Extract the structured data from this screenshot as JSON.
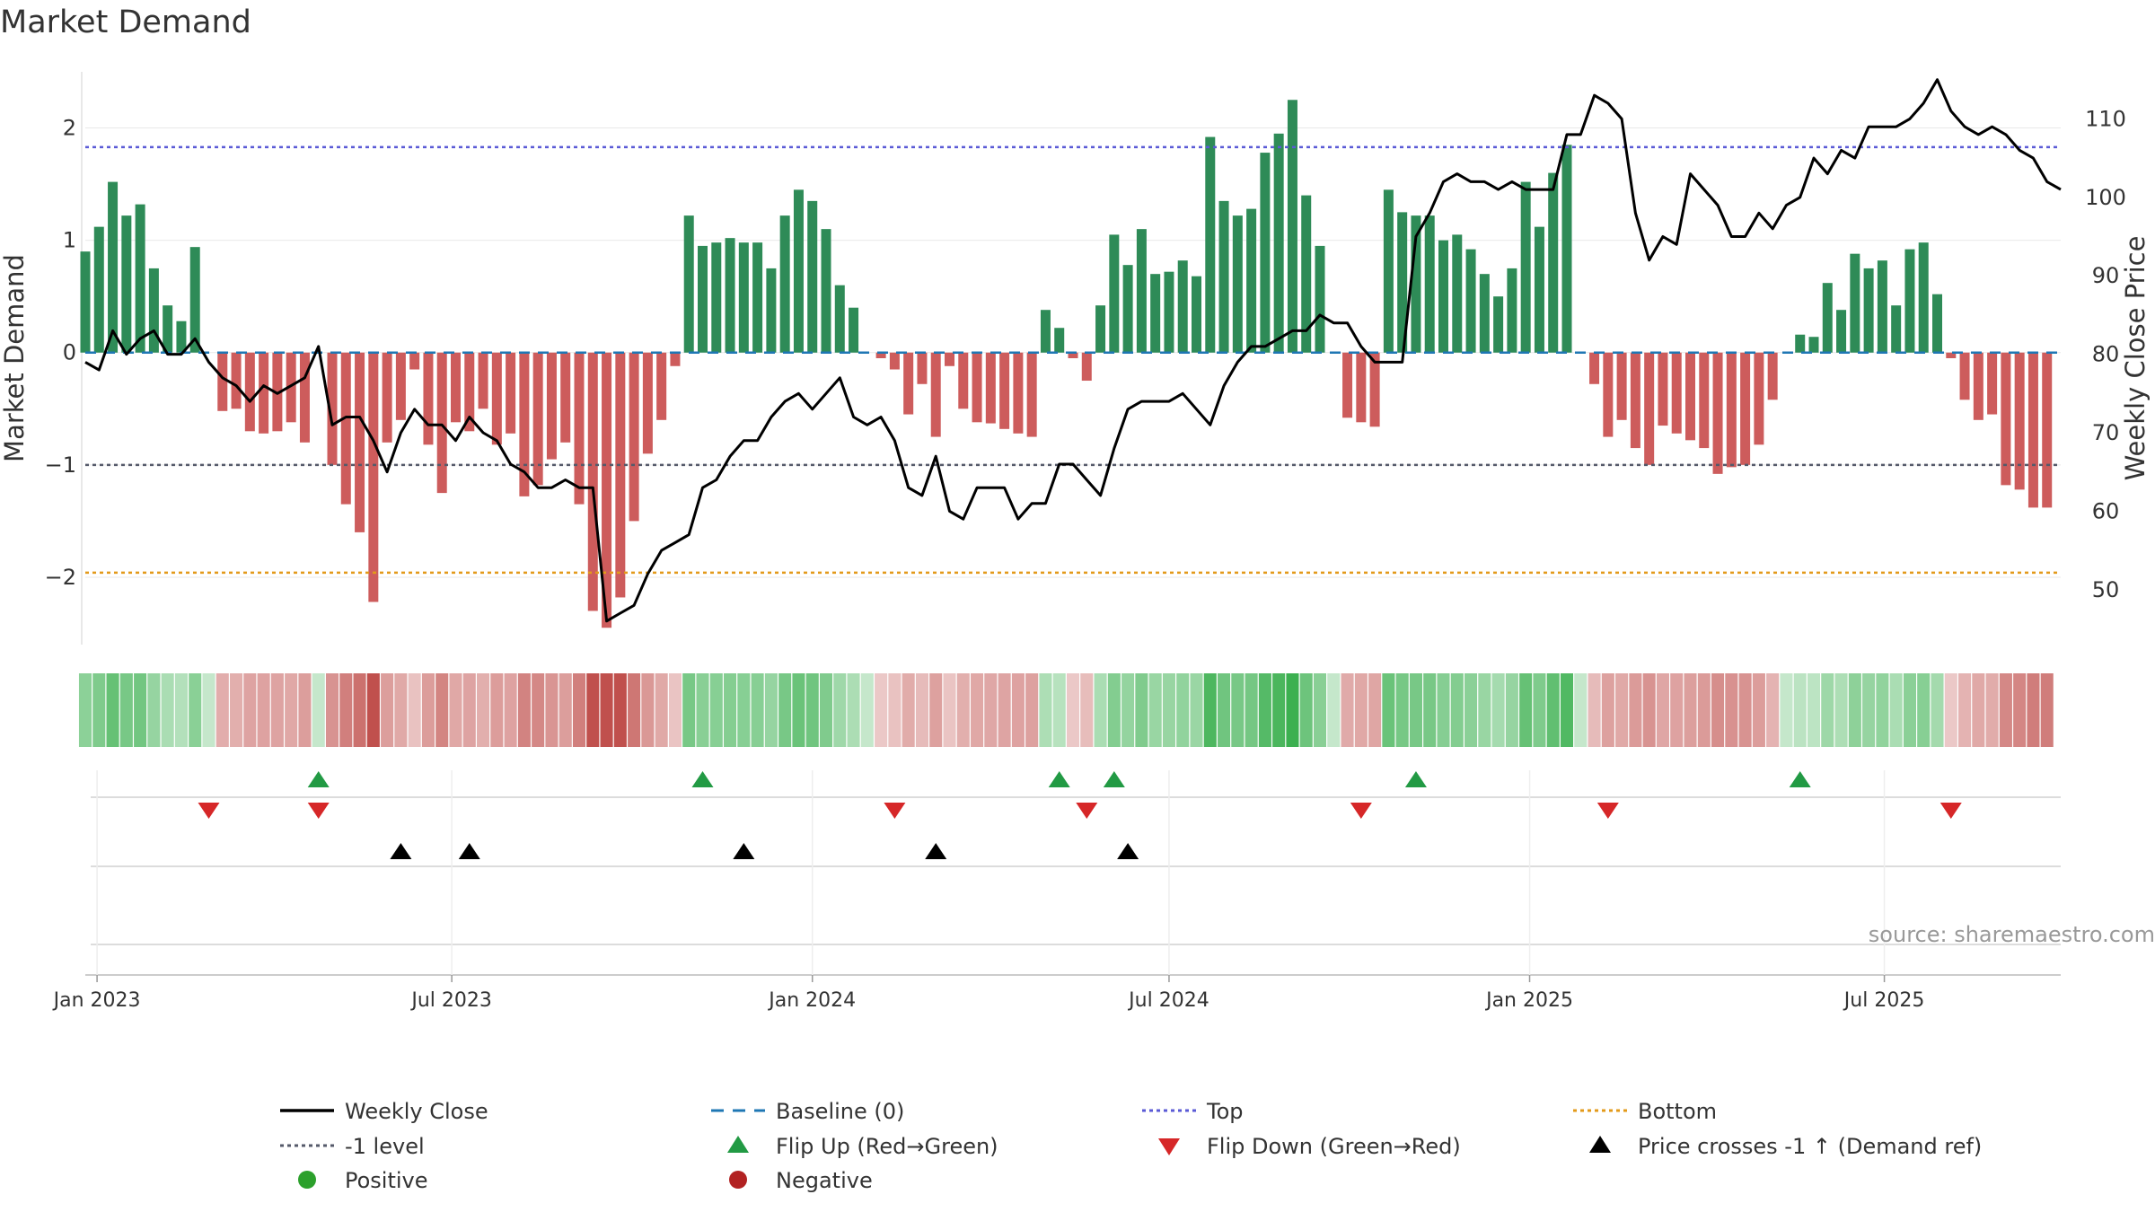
{
  "chart_data": {
    "type": "bar",
    "title": "Market Demand",
    "ylabel": "Market Demand",
    "y2label": "Weekly Close Price",
    "ylim": [
      -2.6,
      2.5
    ],
    "y2lim": [
      43,
      116
    ],
    "yticks": [
      2,
      1,
      0,
      -1,
      -2
    ],
    "ytick_labels": [
      "2",
      "1",
      "0",
      "−1",
      "−2"
    ],
    "y2ticks": [
      110,
      100,
      90,
      80,
      70,
      60,
      50
    ],
    "x_start": "2022-12-26",
    "x_end": "2025-09-29",
    "xticks": [
      {
        "date": "2023-01-01",
        "label": "Jan 2023"
      },
      {
        "date": "2023-07-01",
        "label": "Jul 2023"
      },
      {
        "date": "2024-01-01",
        "label": "Jan 2024"
      },
      {
        "date": "2024-07-01",
        "label": "Jul 2024"
      },
      {
        "date": "2025-01-01",
        "label": "Jan 2025"
      },
      {
        "date": "2025-07-01",
        "label": "Jul 2025"
      }
    ],
    "first_week": "2022-12-26",
    "demand": [
      0.9,
      1.12,
      1.52,
      1.22,
      1.32,
      0.75,
      0.42,
      0.28,
      0.94,
      0,
      -0.52,
      -0.5,
      -0.7,
      -0.72,
      -0.7,
      -0.62,
      -0.8,
      0,
      -1.0,
      -1.35,
      -1.6,
      -2.22,
      -0.8,
      -0.6,
      -0.15,
      -0.82,
      -1.25,
      -0.62,
      -0.7,
      -0.5,
      -0.82,
      -0.72,
      -1.28,
      -1.18,
      -0.95,
      -0.8,
      -1.35,
      -2.3,
      -2.45,
      -2.18,
      -1.5,
      -0.9,
      -0.6,
      -0.12,
      1.22,
      0.95,
      0.98,
      1.02,
      0.98,
      0.98,
      0.75,
      1.22,
      1.45,
      1.35,
      1.1,
      0.6,
      0.4,
      0,
      -0.05,
      -0.15,
      -0.55,
      -0.28,
      -0.75,
      -0.12,
      -0.5,
      -0.62,
      -0.63,
      -0.68,
      -0.72,
      -0.75,
      0.38,
      0.22,
      -0.05,
      -0.25,
      0.42,
      1.05,
      0.78,
      1.1,
      0.7,
      0.72,
      0.82,
      0.68,
      1.92,
      1.35,
      1.22,
      1.28,
      1.78,
      1.95,
      2.25,
      1.4,
      0.95,
      0,
      -0.58,
      -0.62,
      -0.66,
      1.45,
      1.25,
      1.22,
      1.22,
      1.0,
      1.05,
      0.92,
      0.7,
      0.5,
      0.75,
      1.52,
      1.12,
      1.6,
      1.85,
      0,
      -0.28,
      -0.75,
      -0.6,
      -0.85,
      -1.0,
      -0.65,
      -0.72,
      -0.78,
      -0.85,
      -1.08,
      -1.02,
      -1.0,
      -0.82,
      -0.42,
      0,
      0.16,
      0.14,
      0.62,
      0.38,
      0.88,
      0.75,
      0.82,
      0.42,
      0.92,
      0.98,
      0.52,
      -0.05,
      -0.42,
      -0.6,
      -0.55,
      -1.18,
      -1.22,
      -1.38,
      -1.38
    ],
    "weekly_close": [
      79,
      78,
      83,
      80,
      82,
      83,
      80,
      80,
      82,
      79,
      77,
      76,
      74,
      76,
      75,
      76,
      77,
      81,
      71,
      72,
      72,
      69,
      65,
      70,
      73,
      71,
      71,
      69,
      72,
      70,
      69,
      66,
      65,
      63,
      63,
      64,
      63,
      63,
      46,
      47,
      48,
      52,
      55,
      56,
      57,
      63,
      64,
      67,
      69,
      69,
      72,
      74,
      75,
      73,
      75,
      77,
      72,
      71,
      72,
      69,
      63,
      62,
      67,
      60,
      59,
      63,
      63,
      63,
      59,
      61,
      61,
      66,
      66,
      64,
      62,
      68,
      73,
      74,
      74,
      74,
      75,
      73,
      71,
      76,
      79,
      81,
      81,
      82,
      83,
      83,
      85,
      84,
      84,
      81,
      79,
      79,
      79,
      95,
      98,
      102,
      103,
      102,
      102,
      101,
      102,
      101,
      101,
      101,
      108,
      108,
      113,
      112,
      110,
      98,
      92,
      95,
      94,
      103,
      101,
      99,
      95,
      95,
      98,
      96,
      99,
      100,
      105,
      103,
      106,
      105,
      109,
      109,
      109,
      110,
      112,
      115,
      111,
      109,
      108,
      109,
      108,
      106,
      105,
      102,
      101
    ],
    "top_level": 1.83,
    "minus_one_level": -1.0,
    "bottom_level": -1.96,
    "baseline_level": 0,
    "flip_up_weeks": [
      17,
      45,
      71,
      75,
      97,
      125
    ],
    "flip_down_weeks": [
      9,
      17,
      59,
      73,
      93,
      111,
      136
    ],
    "price_cross_weeks": [
      23,
      28,
      48,
      62,
      76
    ],
    "source": "source: sharemaestro.com",
    "legend": [
      {
        "label": "Weekly Close",
        "kind": "line",
        "color": "#000000"
      },
      {
        "label": "Baseline (0)",
        "kind": "dash",
        "color": "#1f77b4"
      },
      {
        "label": "Top",
        "kind": "dot",
        "color": "#5a5ad6"
      },
      {
        "label": "Bottom",
        "kind": "dot",
        "color": "#e39a1a"
      },
      {
        "label": "-1 level",
        "kind": "dot",
        "color": "#555a6a"
      },
      {
        "label": "Flip Up (Red→Green)",
        "kind": "up",
        "color": "#229a44"
      },
      {
        "label": "Flip Down (Green→Red)",
        "kind": "down",
        "color": "#d62728"
      },
      {
        "label": "Price crosses -1 ↑ (Demand ref)",
        "kind": "up",
        "color": "#000000"
      },
      {
        "label": "Positive",
        "kind": "dot-marker",
        "color": "#2ca02c"
      },
      {
        "label": "Negative",
        "kind": "dot-marker",
        "color": "#b22222"
      }
    ],
    "colors": {
      "positive_bar": "#2e8b57",
      "negative_bar": "#cd5c5c",
      "baseline": "#1f77b4",
      "flip_up": "#229a44",
      "flip_down": "#d62728",
      "price_cross": "#000000",
      "price_line": "#000000",
      "grid": "#e8e8e8"
    }
  }
}
